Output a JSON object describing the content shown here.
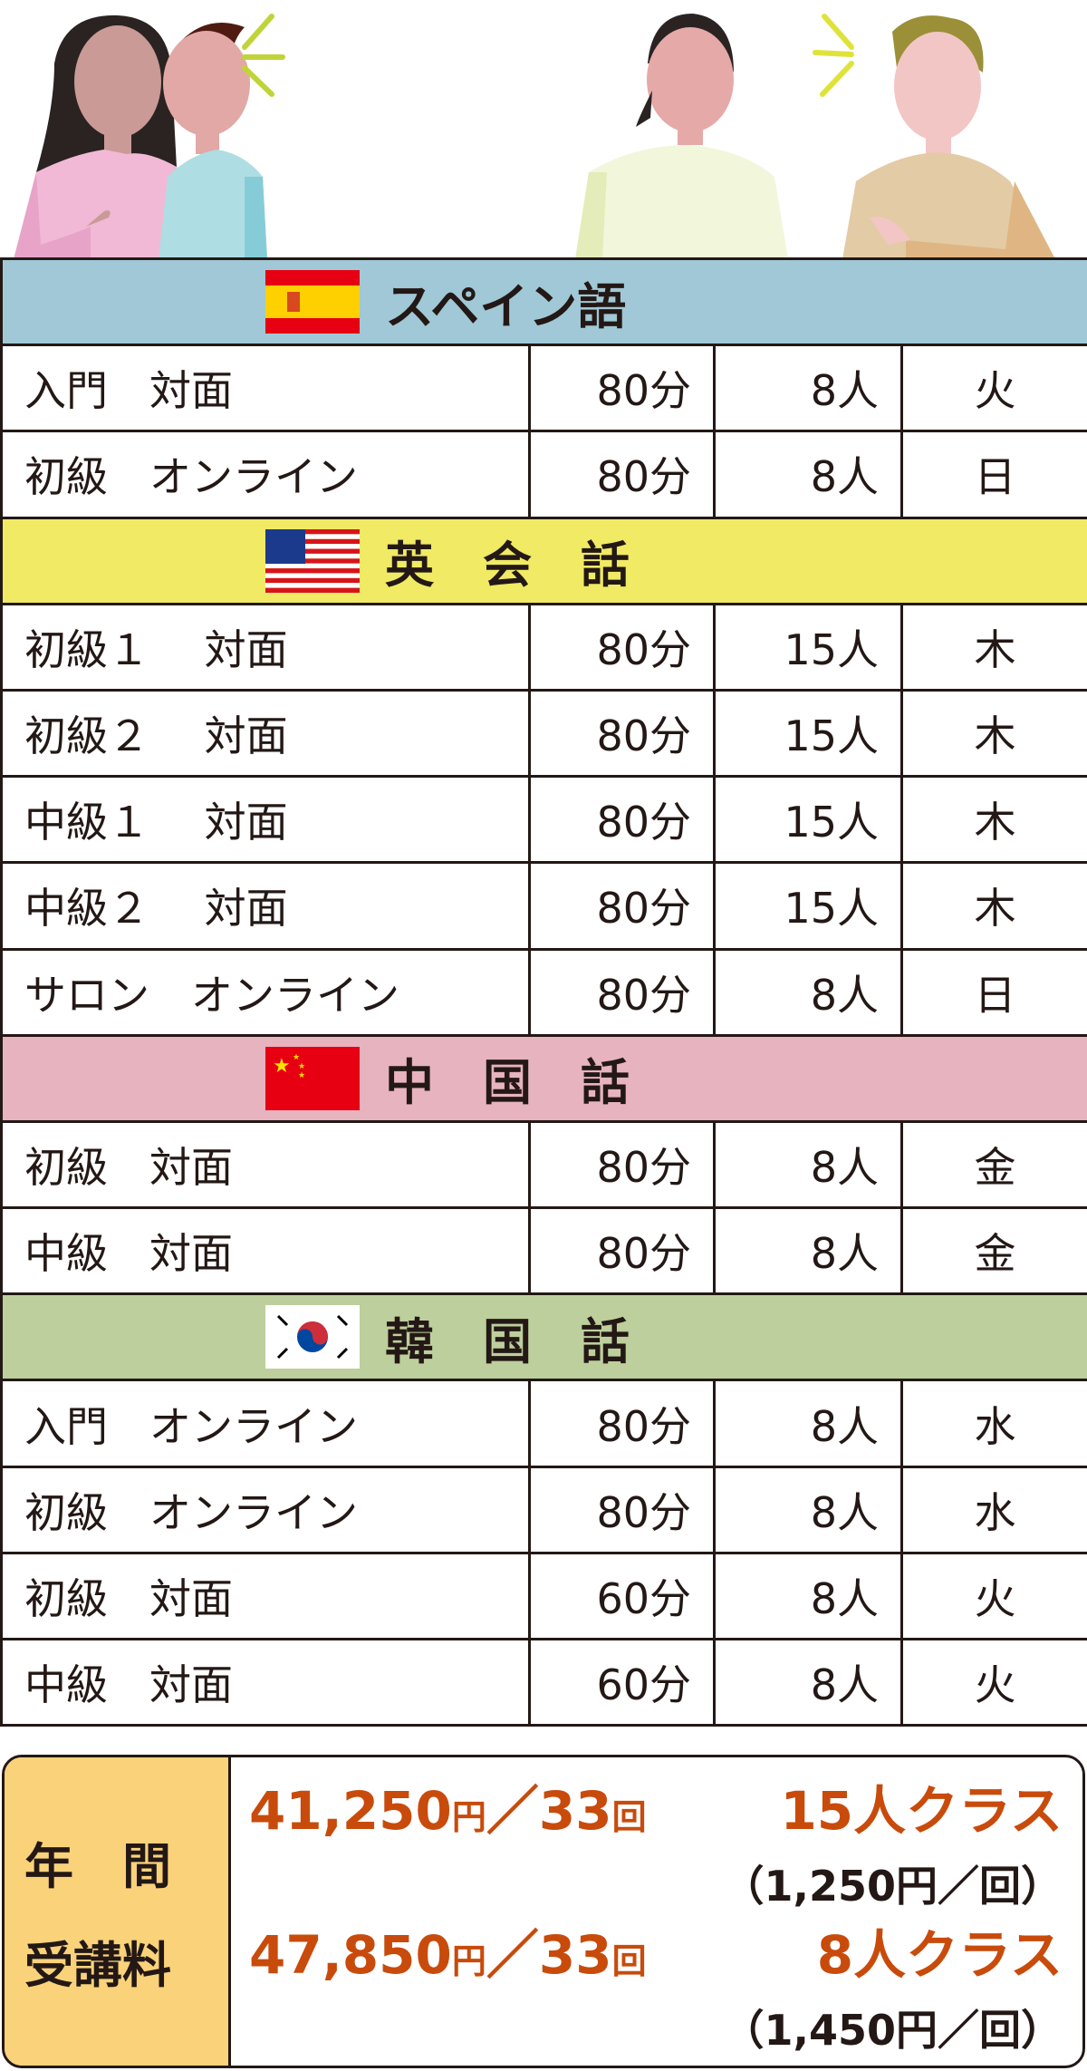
{
  "sections": [
    {
      "title": "スペイン語",
      "flag": "spain-flag",
      "color": "#a0c8d6",
      "rows": [
        [
          "入門　対面",
          "80分",
          "8人",
          "火"
        ],
        [
          "初級　オンライン",
          "80分",
          "8人",
          "日"
        ]
      ]
    },
    {
      "title": "英　会　話",
      "flag": "usa-flag",
      "color": "#f0ea64",
      "rows": [
        [
          "初級１　 対面",
          "80分",
          "15人",
          "木"
        ],
        [
          "初級２　 対面",
          "80分",
          "15人",
          "木"
        ],
        [
          "中級１　 対面",
          "80分",
          "15人",
          "木"
        ],
        [
          "中級２　 対面",
          "80分",
          "15人",
          "木"
        ],
        [
          "サロン　オンライン",
          "80分",
          "8人",
          "日"
        ]
      ]
    },
    {
      "title": "中　国　話",
      "flag": "china-flag",
      "color": "#e6b3bf",
      "rows": [
        [
          "初級　対面",
          "80分",
          "8人",
          "金"
        ],
        [
          "中級　対面",
          "80分",
          "8人",
          "金"
        ]
      ]
    },
    {
      "title": "韓　国　話",
      "flag": "korea-flag",
      "color": "#bdcf9c",
      "rows": [
        [
          "入門　オンライン",
          "80分",
          "8人",
          "水"
        ],
        [
          "初級　オンライン",
          "80分",
          "8人",
          "水"
        ],
        [
          "初級　対面",
          "60分",
          "8人",
          "火"
        ],
        [
          "中級　対面",
          "60分",
          "8人",
          "火"
        ]
      ]
    }
  ],
  "pricing": {
    "label_line1": "年　間",
    "label_line2": "受講料",
    "plans": [
      {
        "amount": "41,250",
        "yen": "円",
        "slash": "／",
        "count": "33",
        "kai": "回",
        "class": "15人クラス",
        "per": "（1,250円／回）"
      },
      {
        "amount": "47,850",
        "yen": "円",
        "slash": "／",
        "count": "33",
        "kai": "回",
        "class": "8人クラス",
        "per": "（1,450円／回）"
      }
    ]
  }
}
